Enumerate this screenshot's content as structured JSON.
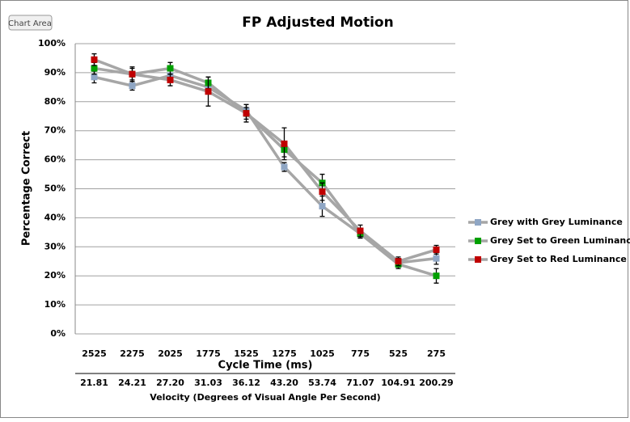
{
  "ui": {
    "tooltip": "Chart Area"
  },
  "chart_data": {
    "type": "line",
    "title": "FP Adjusted Motion",
    "y_label": "Percentage Correct",
    "x_label": "Cycle Time (ms)",
    "categories": [
      "2525",
      "2275",
      "2025",
      "1775",
      "1525",
      "1275",
      "1025",
      "775",
      "525",
      "275"
    ],
    "x2_categories": [
      "21.81",
      "24.21",
      "27.20",
      "31.03",
      "36.12",
      "43.20",
      "53.74",
      "71.07",
      "104.91",
      "200.29"
    ],
    "x2_label": "Velocity (Degrees of Visual Angle Per Second)",
    "ylim": [
      0,
      100
    ],
    "yticks": [
      {
        "value": 0,
        "label": "0%"
      },
      {
        "value": 10,
        "label": "10%"
      },
      {
        "value": 20,
        "label": "20%"
      },
      {
        "value": 30,
        "label": "30%"
      },
      {
        "value": 40,
        "label": "40%"
      },
      {
        "value": 50,
        "label": "50%"
      },
      {
        "value": 60,
        "label": "60%"
      },
      {
        "value": 70,
        "label": "70%"
      },
      {
        "value": 80,
        "label": "80%"
      },
      {
        "value": 90,
        "label": "90%"
      },
      {
        "value": 100,
        "label": "100%"
      }
    ],
    "grid": true,
    "legend": "right",
    "line_color": "#a6a6a6",
    "error_color": "#000000",
    "series": [
      {
        "name": "Grey with Grey Luminance",
        "color": "#8fa6c4",
        "values": [
          88.5,
          85.5,
          89,
          85,
          77,
          57.5,
          44,
          34.5,
          24.5,
          26
        ],
        "errors": [
          2,
          1.5,
          2,
          2,
          2,
          1.5,
          3.5,
          1.5,
          1.5,
          2
        ]
      },
      {
        "name": "Grey Set to Green Luminance",
        "color": "#00a000",
        "values": [
          91.5,
          89.5,
          91.5,
          86.5,
          76,
          63.5,
          52,
          34.5,
          24,
          20
        ],
        "errors": [
          2,
          2,
          2,
          2,
          2,
          2.5,
          3,
          1.5,
          1.5,
          2.5
        ]
      },
      {
        "name": "Grey Set to Red Luminance",
        "color": "#c00000",
        "values": [
          94.5,
          89.5,
          87.5,
          83.5,
          76,
          65.5,
          49,
          35.5,
          25,
          29
        ],
        "errors": [
          2,
          2.5,
          2,
          5,
          3,
          5.5,
          3,
          2,
          1.5,
          1.5
        ]
      }
    ]
  }
}
